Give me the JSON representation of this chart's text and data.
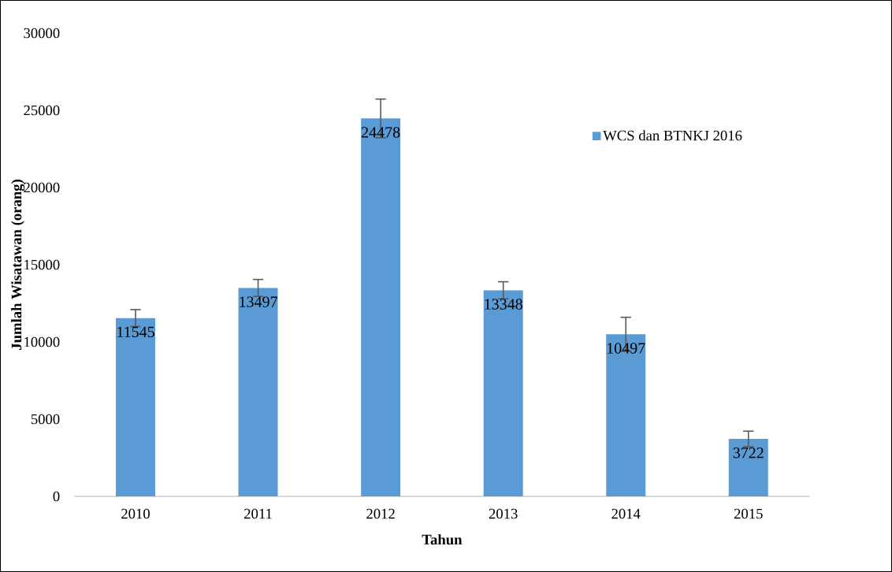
{
  "chart_data": {
    "type": "bar",
    "xlabel": "Tahun",
    "ylabel": "Jumlah Wisatawan (orang)",
    "categories": [
      "2010",
      "2011",
      "2012",
      "2013",
      "2014",
      "2015"
    ],
    "series": [
      {
        "name": "WCS dan BTNKJ 2016",
        "color": "#5b9bd5",
        "values": [
          11545,
          13497,
          24478,
          13348,
          10497,
          3722
        ],
        "errors": [
          550,
          550,
          1250,
          550,
          1100,
          500
        ]
      }
    ],
    "ylim": [
      0,
      30000
    ],
    "yticks": [
      0,
      5000,
      10000,
      15000,
      20000,
      25000,
      30000
    ],
    "data_labels": true,
    "legend": "top right"
  }
}
